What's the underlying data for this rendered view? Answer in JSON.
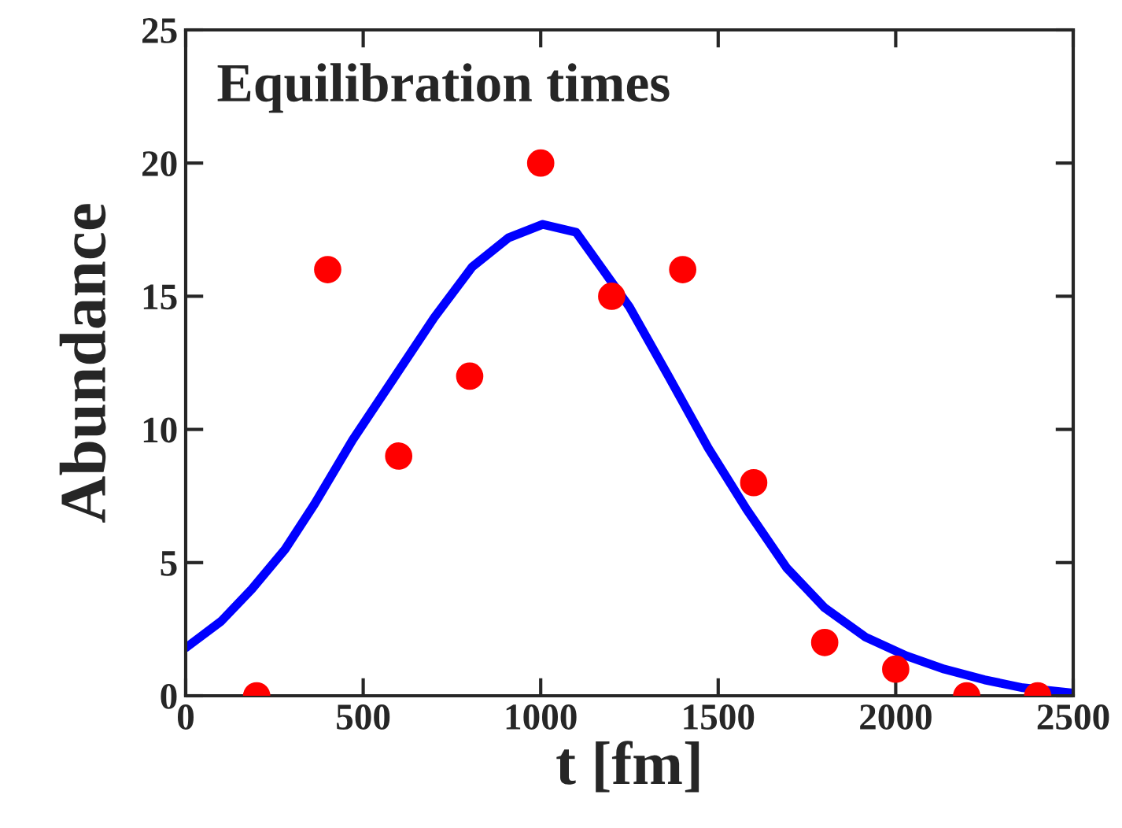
{
  "chart_data": {
    "type": "scatter",
    "title": "Equilibration times",
    "xlabel": "t [fm]",
    "ylabel": "Abundance",
    "x": [
      200,
      400,
      600,
      800,
      1000,
      1200,
      1400,
      1600,
      1800,
      2000,
      2200,
      2400
    ],
    "series": [
      {
        "color": "#ff0000",
        "marker": "circle",
        "values": [
          0,
          16,
          9,
          12,
          20,
          15,
          16,
          8,
          2,
          1,
          0,
          0
        ]
      },
      {
        "type": "line",
        "color": "#0000ff",
        "line_style": "solid",
        "x": [
          0,
          100,
          186,
          280,
          363,
          470,
          585,
          700,
          807,
          910,
          1006,
          1100,
          1250,
          1360,
          1472,
          1580,
          1693,
          1800,
          1915,
          2030,
          2137,
          2250,
          2358,
          2500
        ],
        "values": [
          1.8,
          2.8,
          4.0,
          5.5,
          7.2,
          9.6,
          11.9,
          14.2,
          16.1,
          17.2,
          17.7,
          17.4,
          14.6,
          12.0,
          9.3,
          7.0,
          4.8,
          3.3,
          2.2,
          1.5,
          1.0,
          0.6,
          0.3,
          0.1
        ]
      }
    ],
    "xlim": [
      0,
      2500
    ],
    "xticks": [
      0,
      500,
      1000,
      1500,
      2000,
      2500
    ],
    "ylim": [
      0,
      25
    ],
    "yticks": [
      0,
      5,
      10,
      15,
      20,
      25
    ],
    "grid": false,
    "legend": false
  }
}
